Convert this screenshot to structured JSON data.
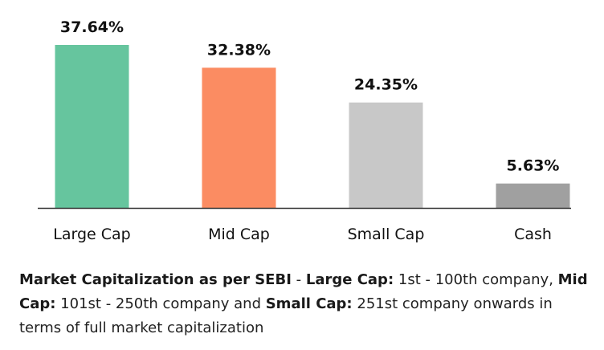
{
  "chart_data": {
    "type": "bar",
    "title": "",
    "xlabel": "",
    "ylabel": "",
    "categories": [
      "Large Cap",
      "Mid Cap",
      "Small Cap",
      "Cash"
    ],
    "values": [
      37.64,
      32.38,
      24.35,
      5.63
    ],
    "value_labels": [
      "37.64%",
      "32.38%",
      "24.35%",
      "5.63%"
    ],
    "colors": [
      "#66c59e",
      "#fb8c62",
      "#c8c8c8",
      "#a0a0a0"
    ],
    "ylim": [
      0,
      37.64
    ],
    "grid": false,
    "legend": "none"
  },
  "footnote": {
    "part1_bold": "Market Capitalization as per SEBI",
    "part2": " - ",
    "part3_bold": "Large Cap:",
    "part4": " 1st - 100th company, ",
    "part5_bold": "Mid Cap:",
    "part6": " 101st - 250th company and ",
    "part7_bold": "Small Cap:",
    "part8": " 251st company onwards in terms of full market capitalization"
  },
  "colors": {
    "axis": "#333333"
  }
}
